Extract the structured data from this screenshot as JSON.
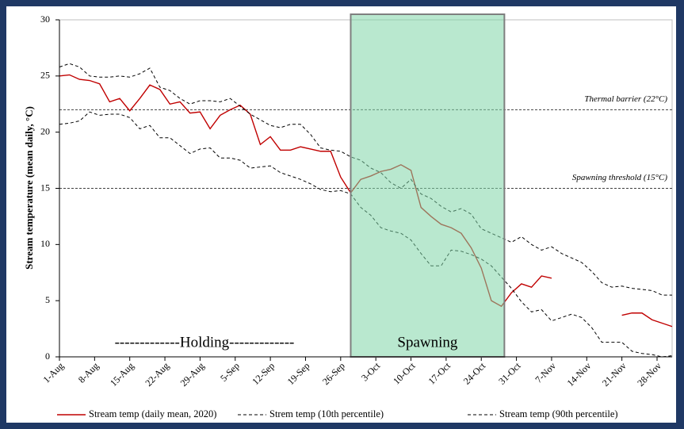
{
  "chart_data": {
    "type": "line",
    "ylabel": "Stream temperature (mean daily, °C)",
    "xlim": [
      0,
      122
    ],
    "ylim": [
      0,
      30
    ],
    "yticks": [
      0,
      5,
      10,
      15,
      20,
      25,
      30
    ],
    "xticks": [
      {
        "value": 0,
        "label": "1-Aug"
      },
      {
        "value": 7,
        "label": "8-Aug"
      },
      {
        "value": 14,
        "label": "15-Aug"
      },
      {
        "value": 21,
        "label": "22-Aug"
      },
      {
        "value": 28,
        "label": "29-Aug"
      },
      {
        "value": 35,
        "label": "5-Sep"
      },
      {
        "value": 42,
        "label": "12-Sep"
      },
      {
        "value": 49,
        "label": "19-Sep"
      },
      {
        "value": 56,
        "label": "26-Sep"
      },
      {
        "value": 63,
        "label": "3-Oct"
      },
      {
        "value": 70,
        "label": "10-Oct"
      },
      {
        "value": 77,
        "label": "17-Oct"
      },
      {
        "value": 84,
        "label": "24-Oct"
      },
      {
        "value": 91,
        "label": "31-Oct"
      },
      {
        "value": 98,
        "label": "7-Nov"
      },
      {
        "value": 105,
        "label": "14-Nov"
      },
      {
        "value": 112,
        "label": "21-Nov"
      },
      {
        "value": 119,
        "label": "28-Nov"
      }
    ],
    "x": [
      0,
      2,
      4,
      6,
      8,
      10,
      12,
      14,
      16,
      18,
      20,
      22,
      24,
      26,
      28,
      30,
      32,
      34,
      36,
      38,
      40,
      42,
      44,
      46,
      48,
      50,
      52,
      54,
      56,
      58,
      60,
      62,
      64,
      66,
      68,
      70,
      72,
      74,
      76,
      78,
      80,
      82,
      84,
      86,
      88,
      90,
      92,
      94,
      96,
      98,
      100,
      102,
      104,
      106,
      108,
      110,
      112,
      114,
      116,
      118,
      120,
      122
    ],
    "series": [
      {
        "name": "Stream temp (daily mean, 2020)",
        "color": "#c00000",
        "dash": false,
        "values": [
          25.0,
          25.1,
          24.7,
          24.6,
          24.3,
          22.7,
          23.0,
          21.9,
          23.0,
          24.2,
          23.8,
          22.5,
          22.7,
          21.7,
          21.8,
          20.3,
          21.5,
          22.0,
          22.4,
          21.6,
          18.9,
          19.6,
          18.4,
          18.4,
          18.7,
          18.5,
          18.3,
          18.3,
          16.0,
          14.6,
          15.8,
          16.1,
          16.5,
          16.7,
          17.1,
          16.6,
          13.3,
          12.5,
          11.8,
          11.5,
          11.0,
          9.7,
          7.9,
          5.0,
          4.5,
          5.7,
          6.5,
          6.2,
          7.2,
          7.0,
          null,
          null,
          null,
          null,
          null,
          null,
          3.7,
          3.9,
          3.9,
          3.3,
          3.0,
          2.7
        ]
      },
      {
        "name": "Strem temp (10th percentile)",
        "color": "#000000",
        "dash": true,
        "values": [
          20.7,
          20.8,
          21.0,
          21.8,
          21.5,
          21.6,
          21.6,
          21.3,
          20.3,
          20.6,
          19.5,
          19.5,
          18.8,
          18.1,
          18.5,
          18.6,
          17.7,
          17.7,
          17.5,
          16.8,
          16.9,
          17.0,
          16.4,
          16.1,
          15.8,
          15.4,
          14.9,
          14.7,
          14.8,
          14.5,
          13.3,
          12.6,
          11.5,
          11.2,
          11.0,
          10.4,
          9.2,
          8.1,
          8.1,
          9.5,
          9.4,
          9.1,
          8.7,
          8.1,
          7.1,
          6.1,
          4.9,
          4.0,
          4.2,
          3.2,
          3.5,
          3.8,
          3.5,
          2.6,
          1.3,
          1.3,
          1.3,
          0.5,
          0.3,
          0.2,
          0,
          0.1
        ]
      },
      {
        "name": "Stream temp (90th percentile)",
        "color": "#000000",
        "dash": true,
        "values": [
          25.8,
          26.1,
          25.8,
          25.0,
          24.9,
          24.9,
          25.0,
          24.9,
          25.2,
          25.7,
          24.0,
          23.7,
          23.0,
          22.5,
          22.8,
          22.8,
          22.7,
          23.0,
          22.3,
          21.6,
          21.1,
          20.6,
          20.4,
          20.7,
          20.7,
          19.8,
          18.6,
          18.4,
          18.3,
          17.8,
          17.5,
          16.8,
          16.4,
          15.5,
          15.0,
          15.8,
          14.5,
          14.1,
          13.4,
          12.9,
          13.2,
          12.7,
          11.4,
          11.0,
          10.6,
          10.2,
          10.7,
          10.0,
          9.5,
          9.8,
          9.2,
          8.8,
          8.4,
          7.6,
          6.6,
          6.2,
          6.3,
          6.1,
          6.0,
          5.9,
          5.5,
          5.5
        ]
      }
    ],
    "reference_lines": [
      {
        "value": 22,
        "label": "Thermal barrier (22°C)"
      },
      {
        "value": 15,
        "label": "Spawning threshold (15°C)"
      }
    ],
    "highlight": {
      "x": [
        58,
        88.6
      ],
      "label": "Spawning",
      "color": "#7fd6a8"
    },
    "period_label": "-------------Holding-------------"
  }
}
